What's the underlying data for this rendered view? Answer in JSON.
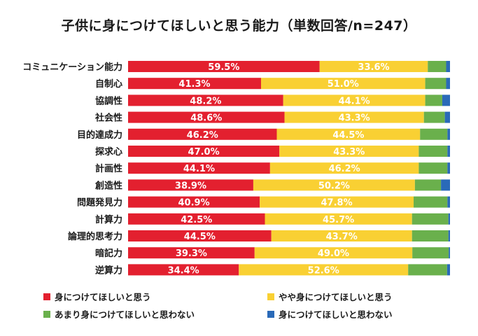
{
  "chart_data": {
    "type": "bar",
    "orientation": "horizontal",
    "stacked": true,
    "title": "子供に身につけてほしいと思う能力（単数回答/n=247）",
    "categories": [
      "コミュニケーション能力",
      "自制心",
      "協調性",
      "社会性",
      "目的達成力",
      "探求心",
      "計画性",
      "創造性",
      "問題発見力",
      "計算力",
      "論理的思考力",
      "暗記力",
      "逆算力"
    ],
    "series": [
      {
        "name": "身につけてほしいと思う",
        "color": "#e3202f",
        "values": [
          59.5,
          41.3,
          48.2,
          48.6,
          46.2,
          47.0,
          44.1,
          38.9,
          40.9,
          42.5,
          44.5,
          39.3,
          34.4
        ],
        "labels": [
          "59.5%",
          "41.3%",
          "48.2%",
          "48.6%",
          "46.2%",
          "47.0%",
          "44.1%",
          "38.9%",
          "40.9%",
          "42.5%",
          "44.5%",
          "39.3%",
          "34.4%"
        ]
      },
      {
        "name": "やや身につけてほしいと思う",
        "color": "#f9d033",
        "values": [
          33.6,
          51.0,
          44.1,
          43.3,
          44.5,
          43.3,
          46.2,
          50.2,
          47.8,
          45.7,
          43.7,
          49.0,
          52.6
        ],
        "labels": [
          "33.6%",
          "51.0%",
          "44.1%",
          "43.3%",
          "44.5%",
          "43.3%",
          "46.2%",
          "50.2%",
          "47.8%",
          "45.7%",
          "43.7%",
          "49.0%",
          "52.6%"
        ]
      },
      {
        "name": "あまり身につけてほしいと思わない",
        "color": "#6ab04c",
        "values": [
          5.7,
          6.5,
          5.3,
          6.5,
          8.5,
          8.9,
          8.9,
          8.1,
          10.5,
          11.3,
          11.3,
          11.3,
          12.1
        ]
      },
      {
        "name": "身につけてほしいと思わない",
        "color": "#2a6ab8",
        "values": [
          1.2,
          1.2,
          2.4,
          1.6,
          0.8,
          0.8,
          0.8,
          2.8,
          0.8,
          0.5,
          0.5,
          0.4,
          0.9
        ]
      }
    ],
    "xlim": [
      0,
      100
    ],
    "legend_position": "bottom"
  }
}
